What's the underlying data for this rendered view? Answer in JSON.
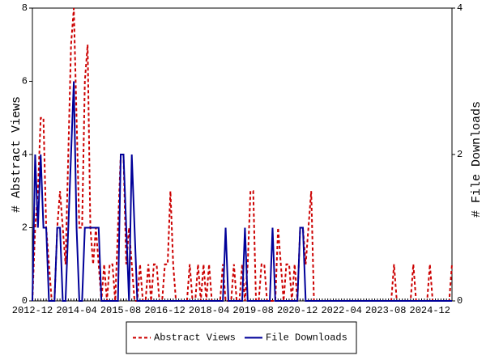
{
  "chart_data": {
    "type": "line",
    "ylabel": "# Abstract Views",
    "y2label": "# File Downloads",
    "categories": [
      "2012-12",
      null,
      null,
      null,
      null,
      null,
      null,
      null,
      null,
      null,
      null,
      null,
      null,
      null,
      null,
      null,
      "2014-04",
      null,
      null,
      null,
      null,
      null,
      null,
      null,
      null,
      null,
      null,
      null,
      null,
      null,
      null,
      null,
      "2015-08",
      null,
      null,
      null,
      null,
      null,
      null,
      null,
      null,
      null,
      null,
      null,
      null,
      null,
      null,
      null,
      "2016-12",
      null,
      null,
      null,
      null,
      null,
      null,
      null,
      null,
      null,
      null,
      null,
      null,
      null,
      null,
      null,
      "2018-04",
      null,
      null,
      null,
      null,
      null,
      null,
      null,
      null,
      null,
      null,
      null,
      null,
      null,
      null,
      null,
      "2019-08",
      null,
      null,
      null,
      null,
      null,
      null,
      null,
      null,
      null,
      null,
      null,
      null,
      null,
      null,
      null,
      "2020-12",
      null,
      null,
      null,
      null,
      null,
      null,
      null,
      null,
      null,
      null,
      null,
      null,
      null,
      null,
      null,
      "2022-04",
      null,
      null,
      null,
      null,
      null,
      null,
      null,
      null,
      null,
      null,
      null,
      null,
      null,
      null,
      null,
      "2023-08",
      null,
      null,
      null,
      null,
      null,
      null,
      null,
      null,
      null,
      null,
      null,
      null,
      null,
      null,
      null,
      "2024-12",
      null,
      null,
      null,
      null,
      null,
      null,
      null,
      null
    ],
    "series": [
      {
        "name": "Abstract Views",
        "color": "#cc0000",
        "dashed": true,
        "values": [
          0,
          2,
          3,
          5,
          5,
          2,
          1,
          0,
          0,
          2,
          3,
          2,
          1,
          4,
          7,
          8,
          5,
          2,
          2,
          6,
          7,
          2,
          1,
          2,
          1,
          0,
          1,
          0,
          1,
          1,
          0,
          2,
          4,
          4,
          1,
          2,
          1,
          0,
          0,
          1,
          0,
          0,
          1,
          0,
          1,
          1,
          0,
          0,
          1,
          1,
          3,
          1,
          0,
          0,
          0,
          0,
          0,
          1,
          0,
          0,
          1,
          0,
          1,
          0,
          1,
          0,
          0,
          0,
          0,
          1,
          0,
          0,
          0,
          1,
          0,
          0,
          1,
          0,
          1,
          3,
          3,
          0,
          0,
          1,
          1,
          0,
          0,
          0,
          0,
          2,
          1,
          0,
          1,
          1,
          0,
          1,
          0,
          2,
          2,
          1,
          2,
          3,
          0,
          0,
          0,
          0,
          0,
          0,
          0,
          0,
          0,
          0,
          0,
          0,
          0,
          0,
          0,
          0,
          0,
          0,
          0,
          0,
          0,
          0,
          0,
          0,
          0,
          0,
          0,
          0,
          0,
          1,
          0,
          0,
          0,
          0,
          0,
          0,
          1,
          0,
          0,
          0,
          0,
          0,
          1,
          0,
          0,
          0,
          0,
          0,
          0,
          0,
          1
        ]
      },
      {
        "name": "File Downloads",
        "color": "#000099",
        "axis": "y2",
        "dashed": false,
        "values": [
          0,
          2,
          1,
          2,
          1,
          1,
          0,
          0,
          0,
          1,
          1,
          0,
          0,
          1,
          2,
          3,
          1,
          0,
          0,
          1,
          1,
          1,
          1,
          1,
          1,
          0,
          0,
          0,
          0,
          0,
          0,
          0,
          2,
          2,
          1,
          0,
          2,
          1,
          0,
          0,
          0,
          0,
          0,
          0,
          0,
          0,
          0,
          0,
          0,
          0,
          0,
          0,
          0,
          0,
          0,
          0,
          0,
          0,
          0,
          0,
          0,
          0,
          0,
          0,
          0,
          0,
          0,
          0,
          0,
          0,
          1,
          0,
          0,
          0,
          0,
          0,
          0,
          1,
          0,
          0,
          0,
          0,
          0,
          0,
          0,
          0,
          0,
          1,
          0,
          0,
          0,
          0,
          0,
          0,
          0,
          0,
          0,
          1,
          1,
          0,
          0,
          0,
          0,
          0,
          0,
          0,
          0,
          0,
          0,
          0,
          0,
          0,
          0,
          0,
          0,
          0,
          0,
          0,
          0,
          0,
          0,
          0,
          0,
          0,
          0,
          0,
          0,
          0,
          0,
          0,
          0,
          0,
          0,
          0,
          0,
          0,
          0,
          0,
          0,
          0,
          0,
          0,
          0,
          0,
          0,
          0,
          0,
          0,
          0,
          0,
          0,
          0,
          0
        ]
      }
    ],
    "ylim": [
      0,
      8
    ],
    "yticks": [
      0,
      2,
      4,
      6,
      8
    ],
    "y2lim": [
      0,
      4
    ],
    "y2ticks": [
      0,
      2,
      4
    ],
    "legend": "bottom"
  }
}
